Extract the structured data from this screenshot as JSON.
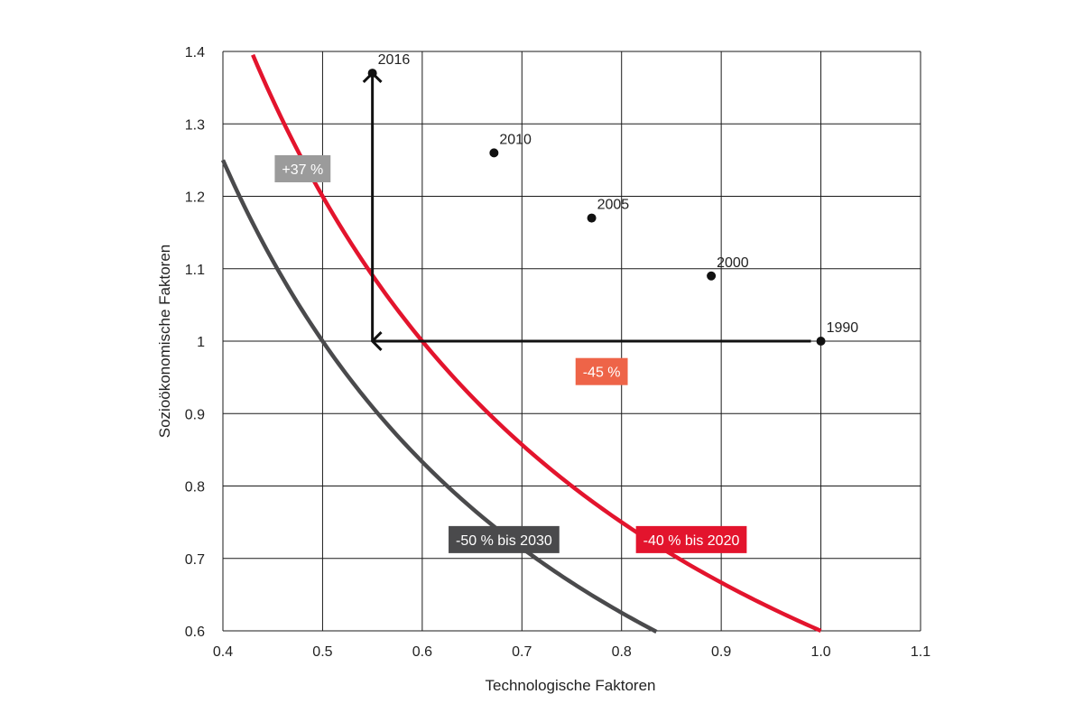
{
  "chart_data": {
    "type": "scatter",
    "title": "",
    "xlabel": "Technologische Faktoren",
    "ylabel": "Sozioökonomische Faktoren",
    "xlim": [
      0.4,
      1.1
    ],
    "ylim": [
      0.6,
      1.4
    ],
    "x_ticks": [
      "0.4",
      "0.5",
      "0.6",
      "0.7",
      "0.8",
      "0.9",
      "1.0",
      "1.1"
    ],
    "y_ticks": [
      "0.6",
      "0.7",
      "0.8",
      "0.9",
      "1",
      "1.1",
      "1.2",
      "1.3",
      "1.4"
    ],
    "grid": true,
    "points": [
      {
        "label": "1990",
        "x": 1.0,
        "y": 1.0
      },
      {
        "label": "2000",
        "x": 0.89,
        "y": 1.09
      },
      {
        "label": "2005",
        "x": 0.77,
        "y": 1.17
      },
      {
        "label": "2010",
        "x": 0.672,
        "y": 1.26
      },
      {
        "label": "2016",
        "x": 0.55,
        "y": 1.37
      }
    ],
    "curves": [
      {
        "label": "-40 % bis 2020",
        "product": 0.6,
        "x_range": [
          0.43,
          1.0
        ],
        "color": "#e3142d"
      },
      {
        "label": "-50 % bis 2030",
        "product": 0.5,
        "x_range": [
          0.4,
          0.835
        ],
        "color": "#4a4a4c"
      }
    ],
    "arrows": [
      {
        "label": "-45 %",
        "from": [
          0.99,
          1.0
        ],
        "to": [
          0.55,
          1.0
        ],
        "label_color": "#ee6448"
      },
      {
        "label": "+37 %",
        "from": [
          0.55,
          1.0
        ],
        "to": [
          0.55,
          1.37
        ],
        "label_color": "#9b9b9b"
      }
    ]
  }
}
